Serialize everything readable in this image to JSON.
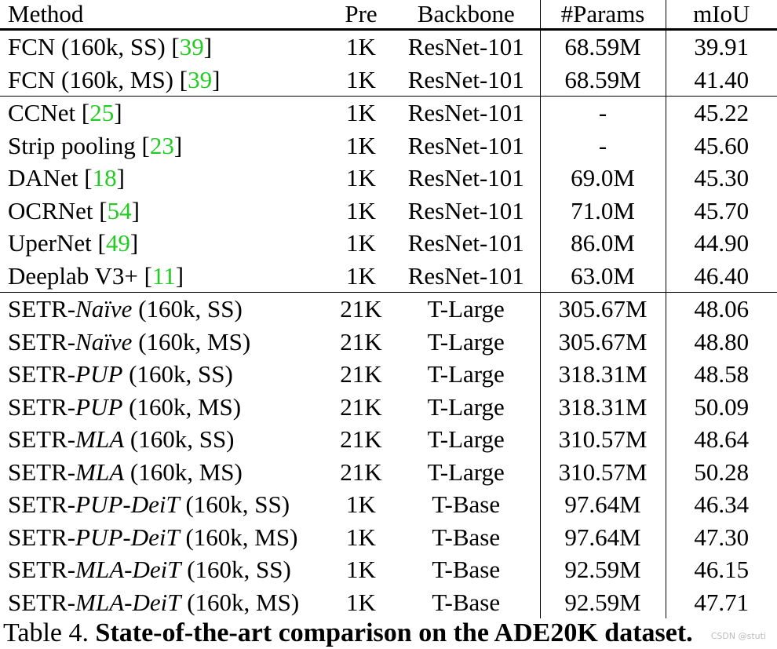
{
  "table": {
    "headers": {
      "method": "Method",
      "pre": "Pre",
      "backbone": "Backbone",
      "params": "#Params",
      "miou": "mIoU"
    },
    "rows": [
      {
        "group_start": true,
        "method_parts": [
          {
            "t": "FCN (160k, SS) ["
          },
          {
            "t": "39",
            "ref": true
          },
          {
            "t": "]"
          }
        ],
        "pre": "1K",
        "backbone": "ResNet-101",
        "params": "68.59M",
        "miou": "39.91"
      },
      {
        "group_start": false,
        "method_parts": [
          {
            "t": "FCN (160k, MS) ["
          },
          {
            "t": "39",
            "ref": true
          },
          {
            "t": "]"
          }
        ],
        "pre": "1K",
        "backbone": "ResNet-101",
        "params": "68.59M",
        "miou": "41.40"
      },
      {
        "group_start": true,
        "method_parts": [
          {
            "t": "CCNet ["
          },
          {
            "t": "25",
            "ref": true
          },
          {
            "t": "]"
          }
        ],
        "pre": "1K",
        "backbone": "ResNet-101",
        "params": "-",
        "miou": "45.22"
      },
      {
        "group_start": false,
        "method_parts": [
          {
            "t": "Strip pooling ["
          },
          {
            "t": "23",
            "ref": true
          },
          {
            "t": "]"
          }
        ],
        "pre": "1K",
        "backbone": "ResNet-101",
        "params": "-",
        "miou": "45.60"
      },
      {
        "group_start": false,
        "method_parts": [
          {
            "t": "DANet ["
          },
          {
            "t": "18",
            "ref": true
          },
          {
            "t": "]"
          }
        ],
        "pre": "1K",
        "backbone": "ResNet-101",
        "params": "69.0M",
        "miou": "45.30"
      },
      {
        "group_start": false,
        "method_parts": [
          {
            "t": "OCRNet ["
          },
          {
            "t": "54",
            "ref": true
          },
          {
            "t": "]"
          }
        ],
        "pre": "1K",
        "backbone": "ResNet-101",
        "params": "71.0M",
        "miou": "45.70"
      },
      {
        "group_start": false,
        "method_parts": [
          {
            "t": "UperNet ["
          },
          {
            "t": "49",
            "ref": true
          },
          {
            "t": "]"
          }
        ],
        "pre": "1K",
        "backbone": "ResNet-101",
        "params": "86.0M",
        "miou": "44.90"
      },
      {
        "group_start": false,
        "method_parts": [
          {
            "t": "Deeplab V3+ ["
          },
          {
            "t": "11",
            "ref": true
          },
          {
            "t": "]"
          }
        ],
        "pre": "1K",
        "backbone": "ResNet-101",
        "params": "63.0M",
        "miou": "46.40"
      },
      {
        "group_start": true,
        "method_parts": [
          {
            "t": "SETR-"
          },
          {
            "t": "Naïve",
            "italic": true
          },
          {
            "t": " (160k, SS)"
          }
        ],
        "pre": "21K",
        "backbone": "T-Large",
        "params": "305.67M",
        "miou": "48.06"
      },
      {
        "group_start": false,
        "method_parts": [
          {
            "t": "SETR-"
          },
          {
            "t": "Naïve",
            "italic": true
          },
          {
            "t": " (160k, MS)"
          }
        ],
        "pre": "21K",
        "backbone": "T-Large",
        "params": "305.67M",
        "miou": "48.80"
      },
      {
        "group_start": false,
        "method_parts": [
          {
            "t": "SETR-"
          },
          {
            "t": "PUP",
            "italic": true
          },
          {
            "t": " (160k, SS)"
          }
        ],
        "pre": "21K",
        "backbone": "T-Large",
        "params": "318.31M",
        "miou": "48.58"
      },
      {
        "group_start": false,
        "method_parts": [
          {
            "t": "SETR-"
          },
          {
            "t": "PUP",
            "italic": true
          },
          {
            "t": " (160k, MS)"
          }
        ],
        "pre": "21K",
        "backbone": "T-Large",
        "params": "318.31M",
        "miou": "50.09"
      },
      {
        "group_start": false,
        "method_parts": [
          {
            "t": "SETR-"
          },
          {
            "t": "MLA",
            "italic": true
          },
          {
            "t": " (160k, SS)"
          }
        ],
        "pre": "21K",
        "backbone": "T-Large",
        "params": "310.57M",
        "miou": "48.64"
      },
      {
        "group_start": false,
        "method_parts": [
          {
            "t": "SETR-"
          },
          {
            "t": "MLA",
            "italic": true
          },
          {
            "t": " (160k, MS)"
          }
        ],
        "pre": "21K",
        "backbone": "T-Large",
        "params": "310.57M",
        "miou": "50.28",
        "best": true
      },
      {
        "group_start": false,
        "method_parts": [
          {
            "t": "SETR-"
          },
          {
            "t": "PUP-DeiT",
            "italic": true
          },
          {
            "t": " (160k, SS)"
          }
        ],
        "pre": "1K",
        "backbone": "T-Base",
        "params": "97.64M",
        "miou": "46.34"
      },
      {
        "group_start": false,
        "method_parts": [
          {
            "t": "SETR-"
          },
          {
            "t": "PUP-DeiT",
            "italic": true
          },
          {
            "t": " (160k, MS)"
          }
        ],
        "pre": "1K",
        "backbone": "T-Base",
        "params": "97.64M",
        "miou": "47.30"
      },
      {
        "group_start": false,
        "method_parts": [
          {
            "t": "SETR-"
          },
          {
            "t": "MLA-DeiT",
            "italic": true
          },
          {
            "t": " (160k, SS)"
          }
        ],
        "pre": "1K",
        "backbone": "T-Base",
        "params": "92.59M",
        "miou": "46.15"
      },
      {
        "group_start": false,
        "method_parts": [
          {
            "t": "SETR-"
          },
          {
            "t": "MLA-DeiT",
            "italic": true
          },
          {
            "t": " (160k, MS)"
          }
        ],
        "pre": "1K",
        "backbone": "T-Base",
        "params": "92.59M",
        "miou": "47.71"
      }
    ]
  },
  "caption": {
    "label": "Table 4. ",
    "title": "State-of-the-art comparison on the ADE20K dataset."
  },
  "watermark": "CSDN @stuti",
  "colors": {
    "reference": "#22cc22"
  }
}
